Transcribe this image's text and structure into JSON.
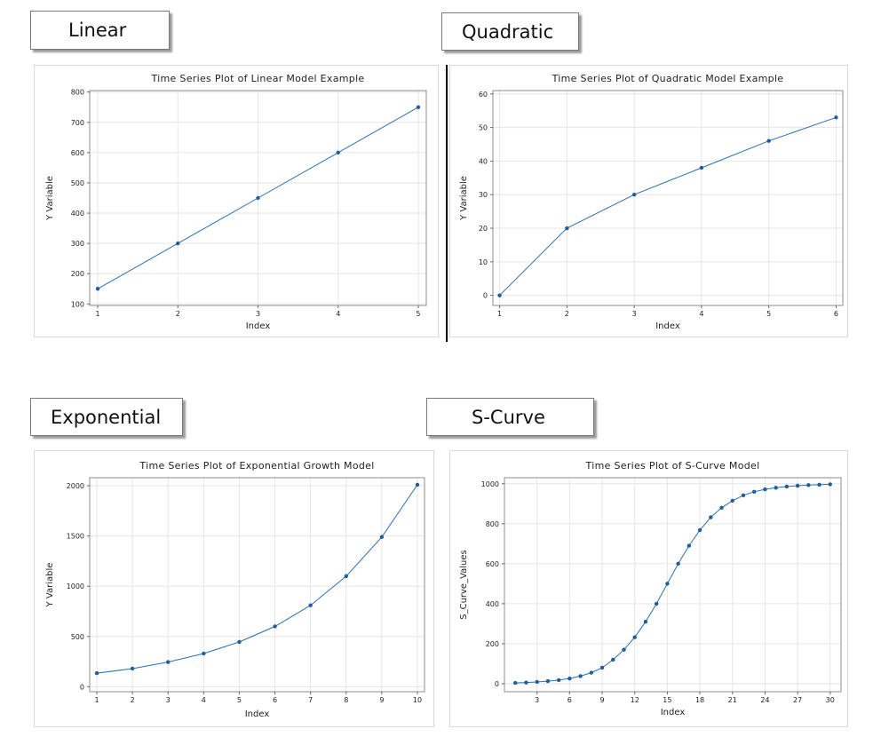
{
  "headers": {
    "linear": "Linear",
    "quadratic": "Quadratic",
    "exponential": "Exponential",
    "scurve": "S-Curve"
  },
  "colors": {
    "series": "#2c6fb0",
    "point": "#1f5d9c",
    "grid": "#e6e6e6"
  },
  "chart_data": [
    {
      "id": "linear",
      "type": "line",
      "title": "Time Series Plot of Linear Model Example",
      "xlabel": "Index",
      "ylabel": "Y Variable",
      "x": [
        1,
        2,
        3,
        4,
        5
      ],
      "values": [
        150,
        300,
        450,
        600,
        750
      ],
      "xlim": [
        0.9,
        5.1
      ],
      "ylim": [
        95,
        805
      ],
      "xticks": [
        1,
        2,
        3,
        4,
        5
      ],
      "yticks": [
        100,
        200,
        300,
        400,
        500,
        600,
        700,
        800
      ],
      "grid": true,
      "legend": "none"
    },
    {
      "id": "quadratic",
      "type": "line",
      "title": "Time Series Plot of Quadratic Model Example",
      "xlabel": "Index",
      "ylabel": "Y Variable",
      "x": [
        1,
        2,
        3,
        4,
        5,
        6
      ],
      "values": [
        0,
        20,
        30,
        38,
        46,
        53
      ],
      "xlim": [
        0.9,
        6.1
      ],
      "ylim": [
        -3,
        61
      ],
      "xticks": [
        1,
        2,
        3,
        4,
        5,
        6
      ],
      "yticks": [
        0,
        10,
        20,
        30,
        40,
        50,
        60
      ],
      "grid": true,
      "legend": "none"
    },
    {
      "id": "exponential",
      "type": "line",
      "title": "Time Series Plot of Exponential Growth Model",
      "xlabel": "Index",
      "ylabel": "Y Variable",
      "x": [
        1,
        2,
        3,
        4,
        5,
        6,
        7,
        8,
        9,
        10
      ],
      "values": [
        135,
        180,
        245,
        330,
        445,
        600,
        810,
        1100,
        1490,
        2010
      ],
      "xlim": [
        0.8,
        10.2
      ],
      "ylim": [
        -50,
        2080
      ],
      "xticks": [
        1,
        2,
        3,
        4,
        5,
        6,
        7,
        8,
        9,
        10
      ],
      "yticks": [
        0,
        500,
        1000,
        1500,
        2000
      ],
      "grid": true,
      "legend": "none"
    },
    {
      "id": "scurve",
      "type": "line",
      "title": "Time Series Plot of S-Curve Model",
      "xlabel": "Index",
      "ylabel": "S_Curve_Values",
      "x": [
        1,
        2,
        3,
        4,
        5,
        6,
        7,
        8,
        9,
        10,
        11,
        12,
        13,
        14,
        15,
        16,
        17,
        18,
        19,
        20,
        21,
        22,
        23,
        24,
        25,
        26,
        27,
        28,
        29,
        30
      ],
      "values": [
        4,
        6,
        9,
        13,
        18,
        26,
        38,
        55,
        80,
        120,
        170,
        232,
        310,
        400,
        500,
        600,
        690,
        768,
        832,
        880,
        915,
        942,
        960,
        972,
        980,
        986,
        990,
        993,
        995,
        997
      ],
      "xlim": [
        0,
        31
      ],
      "ylim": [
        -40,
        1030
      ],
      "xticks": [
        3,
        6,
        9,
        12,
        15,
        18,
        21,
        24,
        27,
        30
      ],
      "yticks": [
        0,
        200,
        400,
        600,
        800,
        1000
      ],
      "grid": true,
      "legend": "none"
    }
  ]
}
